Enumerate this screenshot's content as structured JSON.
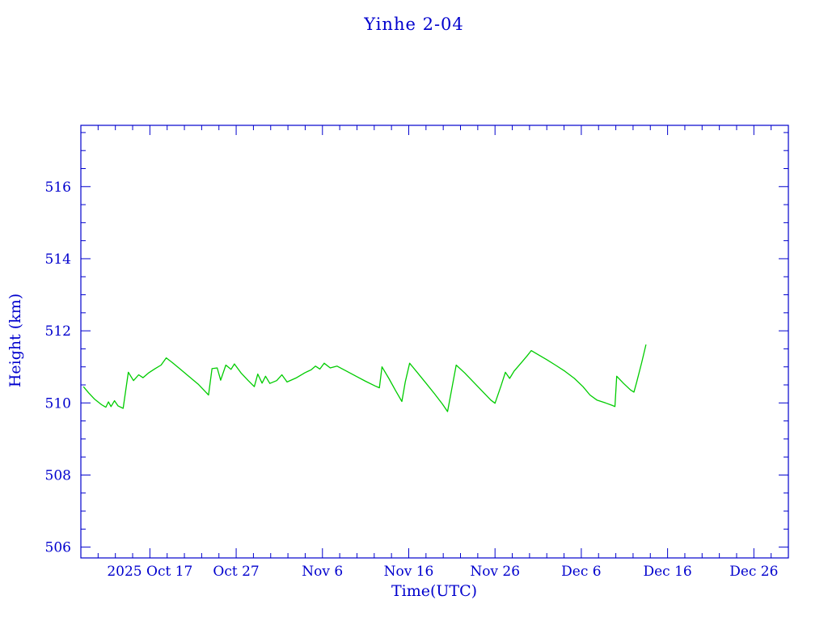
{
  "page": {
    "background": "#ffffff"
  },
  "chart_data": {
    "type": "line",
    "title": "Yinhe 2-04",
    "xlabel": "Time(UTC)",
    "ylabel": "Height (km)",
    "title_color": "#0000cd",
    "axis_color": "#0000cd",
    "line_color": "#00cc00",
    "legend": "none",
    "grid": false,
    "x_axis": {
      "unit": "days, day 0 = 2025 Oct 9 (left edge of frame)",
      "range": [
        0,
        82
      ],
      "minor_tick_step_days": 2,
      "major_ticks": [
        {
          "day": 8,
          "label": "2025 Oct 17"
        },
        {
          "day": 18,
          "label": "Oct 27"
        },
        {
          "day": 28,
          "label": "Nov 6"
        },
        {
          "day": 38,
          "label": "Nov 16"
        },
        {
          "day": 48,
          "label": "Nov 26"
        },
        {
          "day": 58,
          "label": "Dec 6"
        },
        {
          "day": 68,
          "label": "Dec 16"
        },
        {
          "day": 78,
          "label": "Dec 26"
        }
      ]
    },
    "y_axis": {
      "range": [
        505.7,
        517.7
      ],
      "major_ticks": [
        506,
        508,
        510,
        512,
        514,
        516
      ],
      "minor_tick_step": 0.5
    },
    "series": [
      {
        "name": "height",
        "points": [
          [
            0.3,
            510.45
          ],
          [
            0.9,
            510.28
          ],
          [
            1.6,
            510.1
          ],
          [
            2.4,
            509.95
          ],
          [
            2.9,
            509.88
          ],
          [
            3.2,
            510.03
          ],
          [
            3.5,
            509.9
          ],
          [
            3.9,
            510.06
          ],
          [
            4.3,
            509.92
          ],
          [
            4.9,
            509.85
          ],
          [
            5.5,
            510.85
          ],
          [
            6.1,
            510.62
          ],
          [
            6.7,
            510.78
          ],
          [
            7.2,
            510.7
          ],
          [
            7.9,
            510.84
          ],
          [
            8.6,
            510.95
          ],
          [
            9.3,
            511.05
          ],
          [
            9.9,
            511.25
          ],
          [
            10.6,
            511.12
          ],
          [
            11.6,
            510.92
          ],
          [
            12.6,
            510.72
          ],
          [
            13.6,
            510.52
          ],
          [
            14.8,
            510.22
          ],
          [
            15.2,
            510.95
          ],
          [
            15.8,
            510.97
          ],
          [
            16.2,
            510.63
          ],
          [
            16.8,
            511.05
          ],
          [
            17.4,
            510.93
          ],
          [
            17.8,
            511.08
          ],
          [
            18.6,
            510.82
          ],
          [
            19.4,
            510.62
          ],
          [
            20.1,
            510.45
          ],
          [
            20.5,
            510.8
          ],
          [
            21.0,
            510.55
          ],
          [
            21.4,
            510.74
          ],
          [
            21.9,
            510.54
          ],
          [
            22.7,
            510.62
          ],
          [
            23.3,
            510.78
          ],
          [
            23.9,
            510.58
          ],
          [
            25.0,
            510.7
          ],
          [
            26.0,
            510.84
          ],
          [
            26.7,
            510.92
          ],
          [
            27.2,
            511.02
          ],
          [
            27.7,
            510.94
          ],
          [
            28.2,
            511.1
          ],
          [
            28.9,
            510.97
          ],
          [
            29.7,
            511.02
          ],
          [
            30.8,
            510.88
          ],
          [
            31.9,
            510.74
          ],
          [
            33.0,
            510.6
          ],
          [
            34.1,
            510.47
          ],
          [
            34.6,
            510.42
          ],
          [
            34.9,
            511.0
          ],
          [
            35.7,
            510.68
          ],
          [
            36.5,
            510.33
          ],
          [
            37.2,
            510.04
          ],
          [
            37.6,
            510.58
          ],
          [
            38.1,
            511.1
          ],
          [
            39.0,
            510.84
          ],
          [
            40.0,
            510.55
          ],
          [
            41.0,
            510.25
          ],
          [
            41.9,
            509.97
          ],
          [
            42.5,
            509.76
          ],
          [
            43.0,
            510.4
          ],
          [
            43.5,
            511.05
          ],
          [
            44.5,
            510.83
          ],
          [
            45.5,
            510.58
          ],
          [
            46.5,
            510.33
          ],
          [
            47.5,
            510.08
          ],
          [
            48.0,
            509.99
          ],
          [
            48.7,
            510.48
          ],
          [
            49.2,
            510.85
          ],
          [
            49.7,
            510.68
          ],
          [
            50.2,
            510.88
          ],
          [
            51.0,
            511.1
          ],
          [
            51.7,
            511.3
          ],
          [
            52.2,
            511.45
          ],
          [
            53.0,
            511.34
          ],
          [
            54.0,
            511.2
          ],
          [
            55.0,
            511.05
          ],
          [
            56.1,
            510.88
          ],
          [
            57.2,
            510.68
          ],
          [
            58.2,
            510.45
          ],
          [
            59.0,
            510.22
          ],
          [
            59.8,
            510.08
          ],
          [
            60.8,
            510.0
          ],
          [
            61.6,
            509.93
          ],
          [
            61.9,
            509.9
          ],
          [
            62.1,
            510.74
          ],
          [
            62.9,
            510.54
          ],
          [
            63.7,
            510.36
          ],
          [
            64.1,
            510.3
          ],
          [
            64.4,
            510.56
          ],
          [
            65.0,
            511.12
          ],
          [
            65.5,
            511.62
          ]
        ]
      }
    ]
  }
}
